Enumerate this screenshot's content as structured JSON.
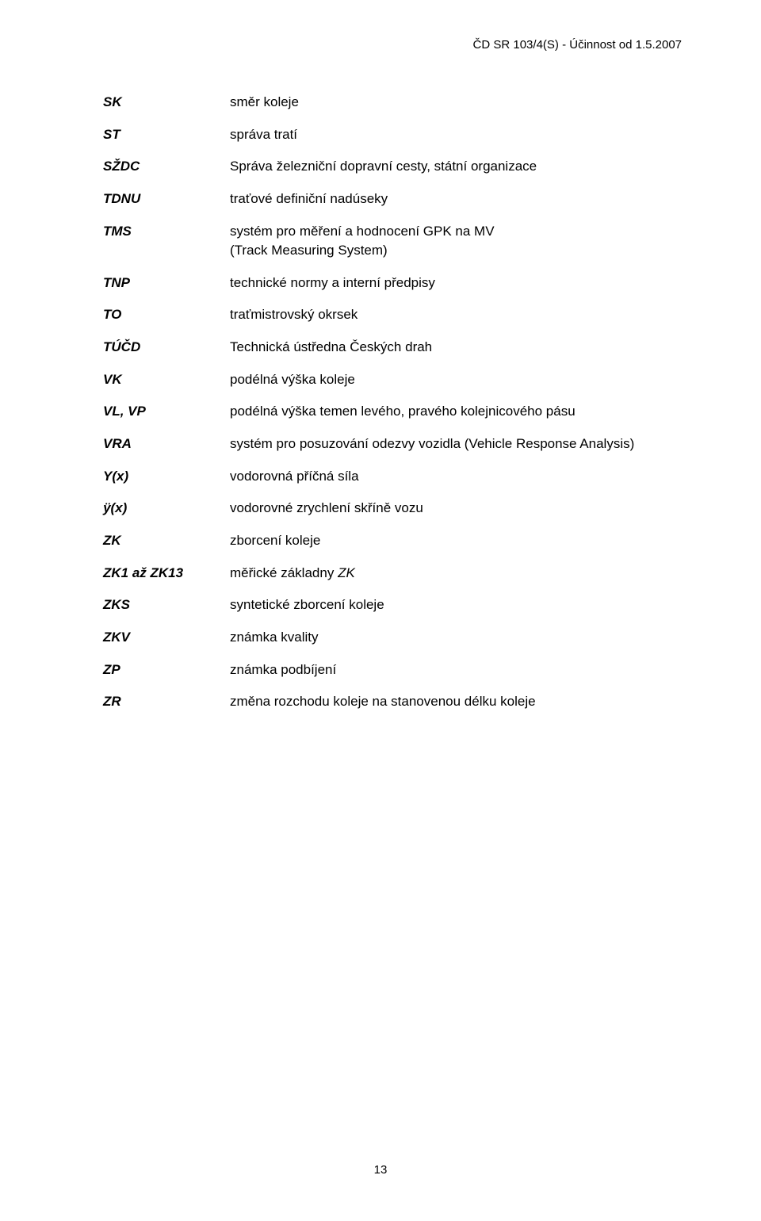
{
  "header": {
    "text": "ČD SR 103/4(S) - Účinnost od 1.5.2007"
  },
  "definitions": [
    {
      "term": "SK",
      "desc": "směr koleje"
    },
    {
      "term": "ST",
      "desc": "správa tratí"
    },
    {
      "term": "SŽDC",
      "desc": "Správa železniční dopravní cesty, státní organizace"
    },
    {
      "term": "TDNU",
      "desc": "traťové definiční nadúseky"
    },
    {
      "term": "TMS",
      "desc": "systém pro měření a hodnocení GPK na MV\n(Track Measuring System)"
    },
    {
      "term": "TNP",
      "desc": "technické normy a interní předpisy"
    },
    {
      "term": "TO",
      "desc": "traťmistrovský okrsek"
    },
    {
      "term": "TÚČD",
      "desc": "Technická ústředna Českých drah"
    },
    {
      "term": "VK",
      "desc": "podélná výška koleje"
    },
    {
      "term": "VL, VP",
      "desc": "podélná výška temen levého, pravého kolejnicového pásu"
    },
    {
      "term": "VRA",
      "desc": "systém pro posuzování odezvy vozidla (Vehicle Response Analysis)"
    },
    {
      "term": "Y(x)",
      "desc": "vodorovná příčná síla"
    },
    {
      "term": "ÿ(x)",
      "desc": "vodorovné zrychlení skříně vozu"
    },
    {
      "term": "ZK",
      "desc": "zborcení koleje"
    },
    {
      "term": "ZK1 až ZK13",
      "desc": "měřické základny ",
      "desc_italic": "ZK"
    },
    {
      "term": "ZKS",
      "desc": "syntetické zborcení koleje"
    },
    {
      "term": "ZKV",
      "desc": "známka kvality"
    },
    {
      "term": "ZP",
      "desc": "známka podbíjení"
    },
    {
      "term": "ZR",
      "desc": "změna rozchodu koleje na stanovenou délku koleje"
    }
  ],
  "page_number": "13"
}
